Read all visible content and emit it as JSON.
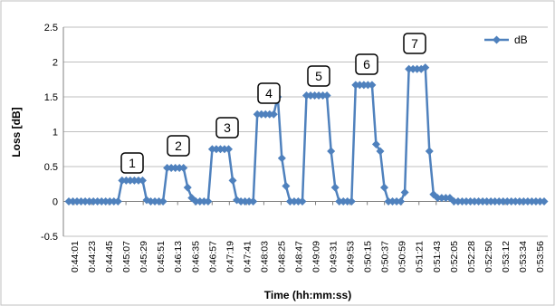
{
  "chart_data": {
    "type": "line",
    "xlabel": "Time (hh:mm:ss)",
    "ylabel": "Loss [dB]",
    "ylim": [
      -0.5,
      2.5
    ],
    "yticks": [
      "-0.5",
      "0",
      "0.5",
      "1",
      "1.5",
      "2",
      "2.5"
    ],
    "grid": "horizontal",
    "legend_position": "top-right",
    "series_color": "#4f81bd",
    "x_tick_labels": [
      "0:44:01",
      "0:44:23",
      "0:44:45",
      "0:45:07",
      "0:45:29",
      "0:45:51",
      "0:46:13",
      "0:46:35",
      "0:46:57",
      "0:47:19",
      "0:47:41",
      "0:48:03",
      "0:48:25",
      "0:48:47",
      "0:49:09",
      "0:49:31",
      "0:49:53",
      "0:50:15",
      "0:50:37",
      "0:50:59",
      "0:51:21",
      "0:51:43",
      "0:52:05",
      "0:52:28",
      "0:52:50",
      "0:53:12",
      "0:53:34",
      "0:53:56"
    ],
    "series": [
      {
        "name": "dB",
        "values": [
          0,
          0,
          0,
          0,
          0,
          0,
          0,
          0,
          0,
          0,
          0,
          0,
          0,
          0.3,
          0.3,
          0.3,
          0.3,
          0.3,
          0.3,
          0.02,
          0,
          0,
          0,
          0,
          0.48,
          0.48,
          0.48,
          0.48,
          0.48,
          0.2,
          0.05,
          0,
          0,
          0,
          0,
          0.75,
          0.75,
          0.75,
          0.75,
          0.75,
          0.3,
          0.02,
          0,
          0,
          0,
          0,
          1.25,
          1.25,
          1.25,
          1.25,
          1.25,
          1.5,
          0.62,
          0.22,
          0,
          0,
          0,
          0,
          1.52,
          1.52,
          1.52,
          1.52,
          1.52,
          1.52,
          0.72,
          0.2,
          0,
          0,
          0,
          0,
          1.67,
          1.67,
          1.67,
          1.67,
          1.67,
          0.82,
          0.72,
          0.2,
          0,
          0,
          0,
          0,
          0.13,
          1.9,
          1.9,
          1.9,
          1.9,
          1.92,
          0.72,
          0.1,
          0.05,
          0.05,
          0.05,
          0.05,
          0,
          0,
          0,
          0,
          0,
          0,
          0,
          0,
          0,
          0,
          0,
          0,
          0,
          0,
          0,
          0,
          0,
          0,
          0,
          0,
          0,
          0,
          0
        ]
      }
    ],
    "annotations": [
      "1",
      "2",
      "3",
      "4",
      "5",
      "6",
      "7"
    ]
  }
}
